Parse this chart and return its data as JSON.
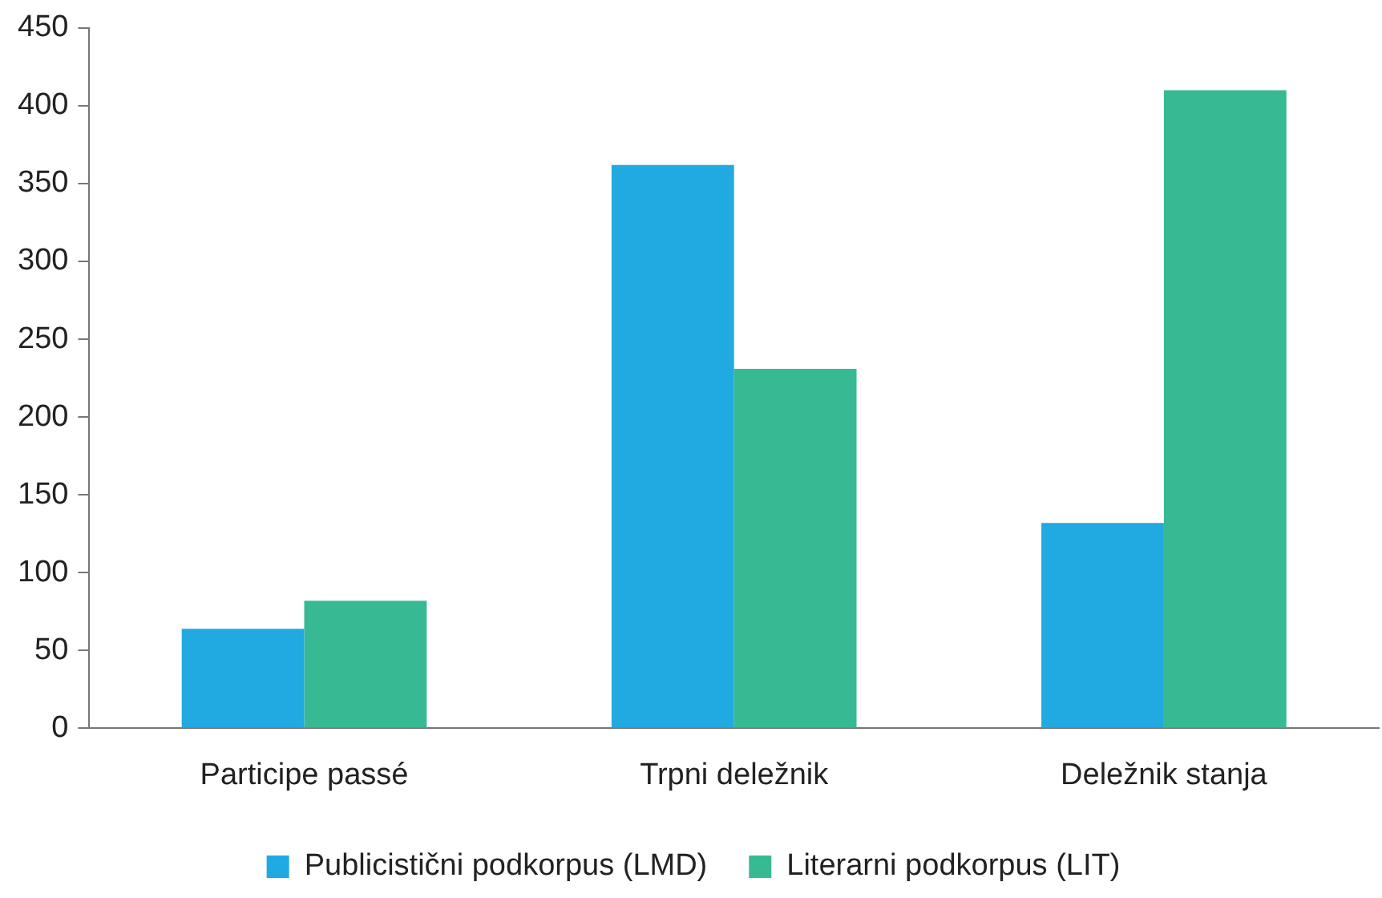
{
  "chart_data": {
    "type": "bar",
    "categories": [
      "Participe passé",
      "Trpni deležnik",
      "Deležnik stanja"
    ],
    "series": [
      {
        "name": "Publicistični podkorpus (LMD)",
        "color": "#21a9e1",
        "values": [
          64,
          362,
          132
        ]
      },
      {
        "name": "Literarni podkorpus (LIT)",
        "color": "#37b994",
        "values": [
          82,
          231,
          410
        ]
      }
    ],
    "ylim": [
      0,
      450
    ],
    "yticks": [
      0,
      50,
      100,
      150,
      200,
      250,
      300,
      350,
      400,
      450
    ],
    "grid": false,
    "legend": "bottom"
  }
}
